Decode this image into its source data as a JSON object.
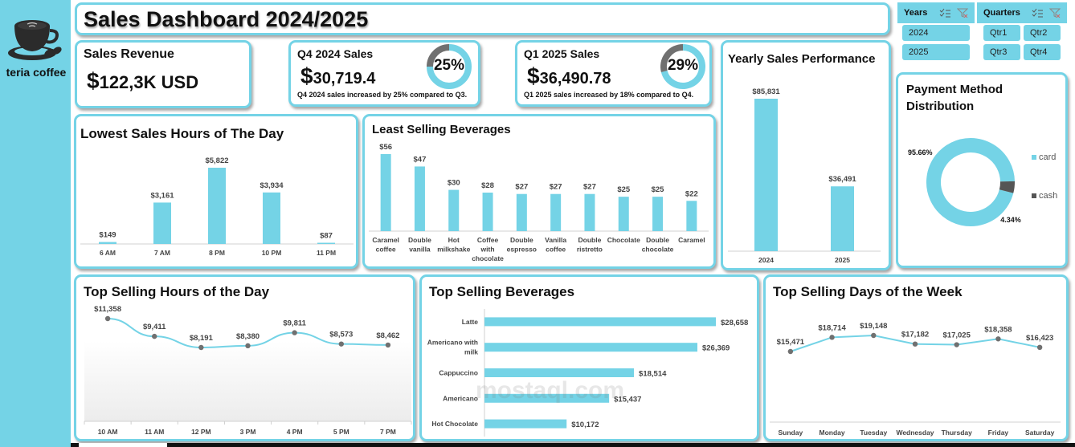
{
  "brand": {
    "name": "teria coffee",
    "logo_icon": "coffee-cup-icon"
  },
  "header": {
    "title": "Sales Dashboard 2024/2025"
  },
  "colors": {
    "accent": "#74d3e6",
    "secondary": "#707070",
    "text": "#111111"
  },
  "kpis": {
    "sales_revenue": {
      "title": "Sales Revenue",
      "currency": "$",
      "value": "122,3K USD"
    },
    "q4_2024": {
      "title": "Q4 2024 Sales",
      "currency": "$",
      "value": "30,719.4",
      "ring_label": "25%",
      "ring_percent": 25,
      "note": "Q4 2024 sales increased by 25% compared to Q3."
    },
    "q1_2025": {
      "title": "Q1 2025 Sales",
      "currency": "$",
      "value": "36,490.78",
      "ring_label": "29%",
      "ring_percent": 29,
      "note": "Q1 2025 sales increased by 18% compared to Q4."
    }
  },
  "slicers": {
    "years": {
      "label": "Years",
      "options": [
        "2024",
        "2025"
      ]
    },
    "quarters": {
      "label": "Quarters",
      "options": [
        "Qtr1",
        "Qtr2",
        "Qtr3",
        "Qtr4"
      ]
    }
  },
  "watermark": "mostaql.com",
  "chart_data": [
    {
      "id": "yearly",
      "type": "bar",
      "title": "Yearly Sales Performance",
      "categories": [
        "2024",
        "2025"
      ],
      "values": [
        85831,
        36491
      ],
      "labels": [
        "$85,831",
        "$36,491"
      ]
    },
    {
      "id": "payment",
      "type": "pie",
      "title": "Payment Method Distribution",
      "categories": [
        "card",
        "cash"
      ],
      "values": [
        95.66,
        4.34
      ],
      "labels": [
        "95.66%",
        "4.34%"
      ],
      "legend": "right"
    },
    {
      "id": "lowest_hours",
      "type": "bar",
      "title": "Lowest Sales Hours of The Day",
      "categories": [
        "6 AM",
        "7 AM",
        "8 PM",
        "10 PM",
        "11 PM"
      ],
      "values": [
        149,
        3161,
        5822,
        3934,
        87
      ],
      "labels": [
        "$149",
        "$3,161",
        "$5,822",
        "$3,934",
        "$87"
      ]
    },
    {
      "id": "least_beverages",
      "type": "bar",
      "title": "Least Selling Beverages",
      "categories": [
        "Caramel coffee",
        "Double vanilla",
        "Hot milkshake",
        "Coffee with chocolate",
        "Double espresso",
        "Vanilla coffee",
        "Double ristretto",
        "Chocolate",
        "Double chocolate",
        "Caramel"
      ],
      "category_lines": [
        [
          "Caramel",
          "coffee"
        ],
        [
          "Double",
          "vanilla"
        ],
        [
          "Hot",
          "milkshake"
        ],
        [
          "Coffee",
          "with",
          "chocolate"
        ],
        [
          "Double",
          "espresso"
        ],
        [
          "Vanilla",
          "coffee"
        ],
        [
          "Double",
          "ristretto"
        ],
        [
          "Chocolate"
        ],
        [
          "Double",
          "chocolate"
        ],
        [
          "Caramel"
        ]
      ],
      "values": [
        56,
        47,
        30,
        28,
        27,
        27,
        27,
        25,
        25,
        22
      ],
      "labels": [
        "$56",
        "$47",
        "$30",
        "$28",
        "$27",
        "$27",
        "$27",
        "$25",
        "$25",
        "$22"
      ]
    },
    {
      "id": "top_hours",
      "type": "line",
      "title": "Top Selling Hours of the Day",
      "categories": [
        "10 AM",
        "11 AM",
        "12 PM",
        "3 PM",
        "4 PM",
        "5 PM",
        "7 PM"
      ],
      "values": [
        11358,
        9411,
        8191,
        8380,
        9811,
        8573,
        8462
      ],
      "labels": [
        "$11,358",
        "$9,411",
        "$8,191",
        "$8,380",
        "$9,811",
        "$8,573",
        "$8,462"
      ]
    },
    {
      "id": "top_beverages",
      "type": "bar",
      "orientation": "horizontal",
      "title": "Top Selling Beverages",
      "categories": [
        "Latte",
        "Americano with milk",
        "Cappuccino",
        "Americano",
        "Hot Chocolate"
      ],
      "category_lines": [
        [
          "Latte"
        ],
        [
          "Americano with",
          "milk"
        ],
        [
          "Cappuccino"
        ],
        [
          "Americano"
        ],
        [
          "Hot Chocolate"
        ]
      ],
      "values": [
        28658,
        26369,
        18514,
        15437,
        10172
      ],
      "labels": [
        "$28,658",
        "$26,369",
        "$18,514",
        "$15,437",
        "$10,172"
      ]
    },
    {
      "id": "top_days",
      "type": "line",
      "title": "Top Selling Days of the Week",
      "categories": [
        "Sunday",
        "Monday",
        "Tuesday",
        "Wednesday",
        "Thursday",
        "Friday",
        "Saturday"
      ],
      "values": [
        15471,
        18714,
        19148,
        17182,
        17025,
        18358,
        16423
      ],
      "labels": [
        "$15,471",
        "$18,714",
        "$19,148",
        "$17,182",
        "$17,025",
        "$18,358",
        "$16,423"
      ]
    }
  ]
}
